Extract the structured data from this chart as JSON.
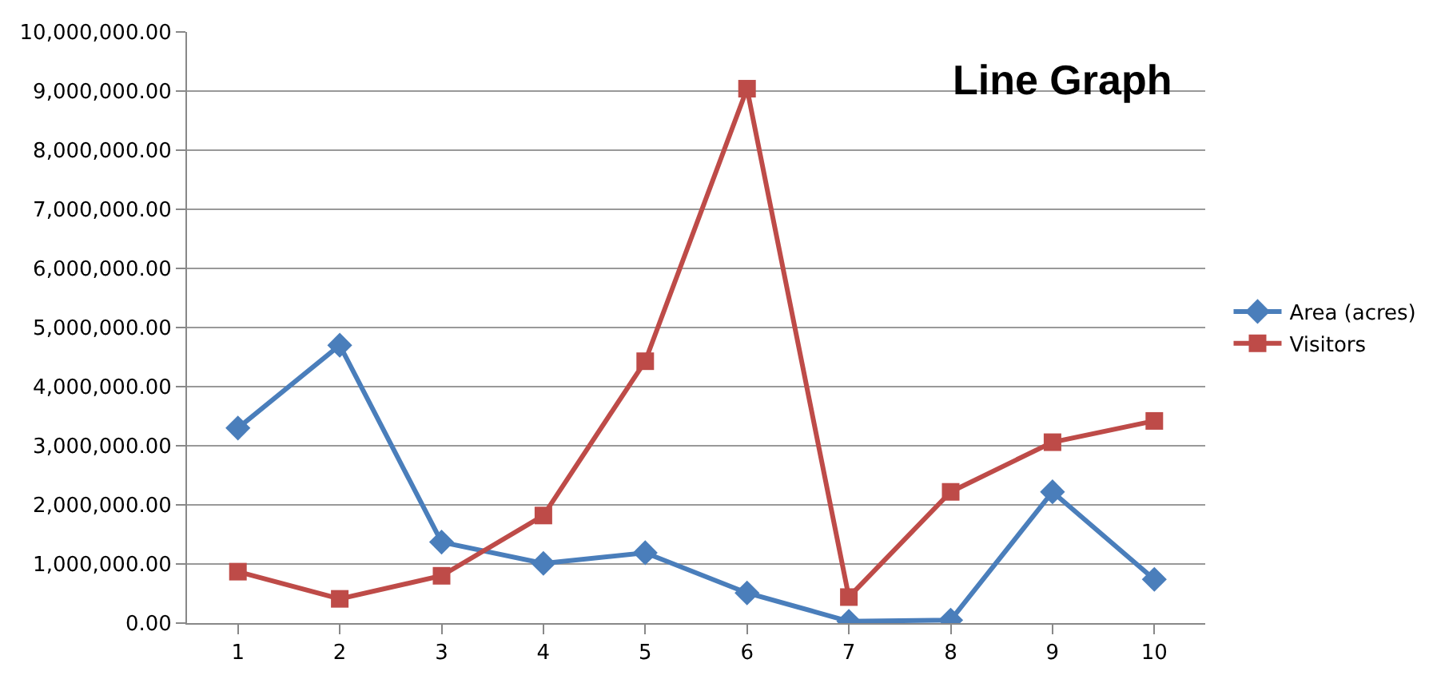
{
  "chart_data": {
    "type": "line",
    "title": "Line Graph",
    "categories": [
      "1",
      "2",
      "3",
      "4",
      "5",
      "6",
      "7",
      "8",
      "9",
      "10"
    ],
    "series": [
      {
        "name": "Area (acres)",
        "color": "#4a7ebb",
        "marker": "diamond",
        "values": [
          3300000,
          4700000,
          1370000,
          1010000,
          1190000,
          510000,
          30000,
          50000,
          2220000,
          740000
        ]
      },
      {
        "name": "Visitors",
        "color": "#be4b48",
        "marker": "square",
        "values": [
          870000,
          410000,
          800000,
          1820000,
          4430000,
          9040000,
          440000,
          2220000,
          3060000,
          3420000
        ]
      }
    ],
    "ylim": [
      0,
      10000000
    ],
    "yticks": [
      {
        "value": 0,
        "label": "0.00"
      },
      {
        "value": 1000000,
        "label": "1,000,000.00"
      },
      {
        "value": 2000000,
        "label": "2,000,000.00"
      },
      {
        "value": 3000000,
        "label": "3,000,000.00"
      },
      {
        "value": 4000000,
        "label": "4,000,000.00"
      },
      {
        "value": 5000000,
        "label": "5,000,000.00"
      },
      {
        "value": 6000000,
        "label": "6,000,000.00"
      },
      {
        "value": 7000000,
        "label": "7,000,000.00"
      },
      {
        "value": 8000000,
        "label": "8,000,000.00"
      },
      {
        "value": 9000000,
        "label": "9,000,000.00"
      },
      {
        "value": 10000000,
        "label": "10,000,000.00"
      }
    ],
    "grid": "y",
    "legend": "right",
    "line_style": "solid"
  }
}
